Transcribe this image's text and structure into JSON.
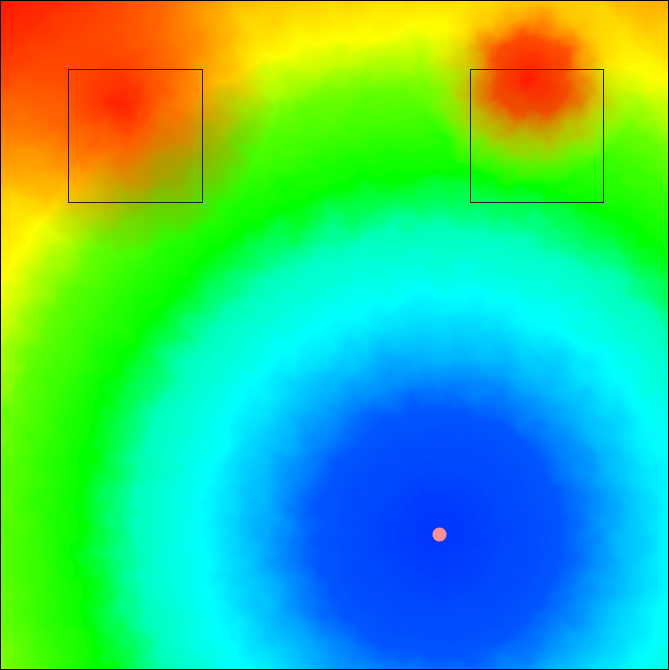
{
  "heatmap": {
    "type": "heatmap",
    "colormap": [
      "#0000ff",
      "#00ffff",
      "#00ff00",
      "#ffff00",
      "#ff0000"
    ],
    "marker_color": "#f4909a",
    "box_color": "#222222",
    "region_boxes": [
      {
        "name": "region-box-left"
      },
      {
        "name": "region-box-right"
      }
    ],
    "source_point": {
      "name": "source-marker"
    }
  }
}
